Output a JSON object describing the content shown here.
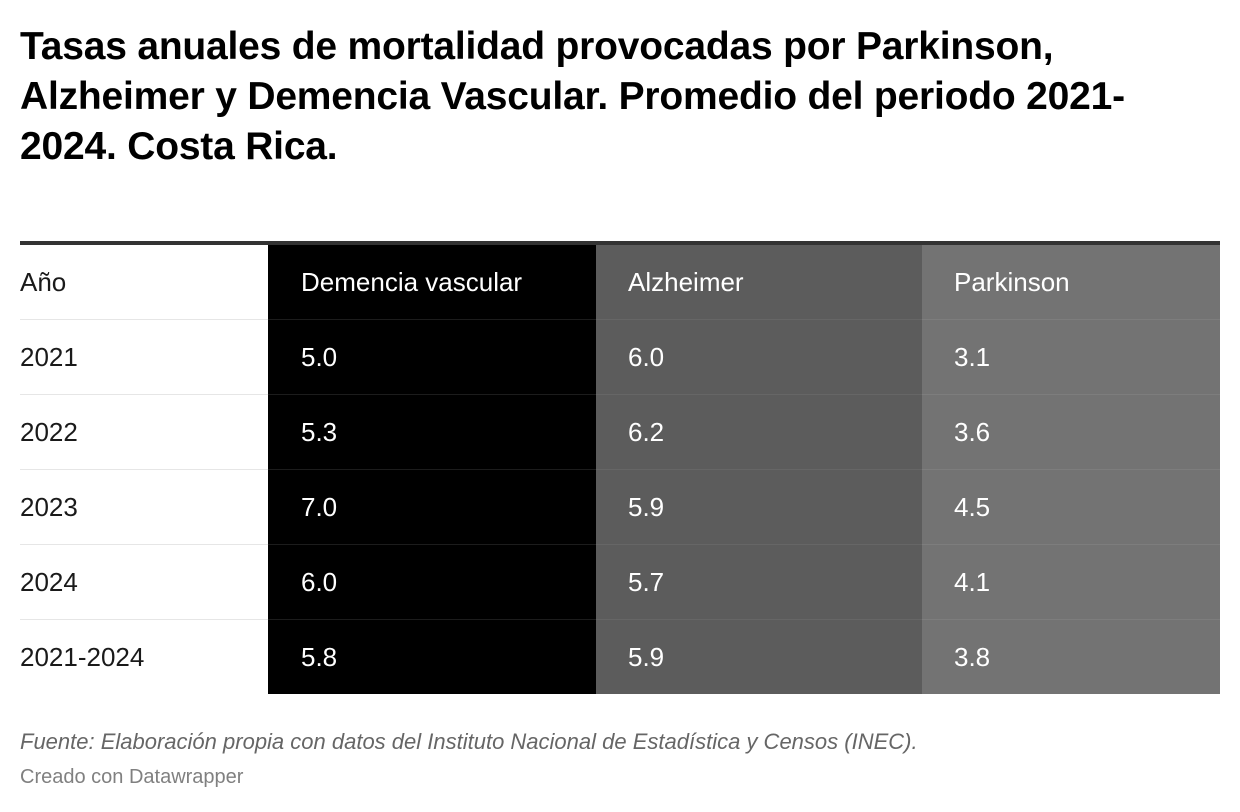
{
  "title": "Tasas anuales de mortalidad provocadas por Parkinson, Alzheimer y Demencia Vascular. Promedio del periodo 2021-2024. Costa Rica.",
  "source": "Fuente: Elaboración propia con datos del Instituto Nacional de Estadística y Censos (INEC).",
  "credit": "Creado con Datawrapper",
  "colors": {
    "demencia_vascular": "#000000",
    "alzheimer": "#5c5c5c",
    "parkinson": "#737373"
  },
  "chart_data": {
    "type": "table",
    "title": "Tasas anuales de mortalidad provocadas por Parkinson, Alzheimer y Demencia Vascular. Promedio del periodo 2021-2024. Costa Rica.",
    "columns": [
      "Año",
      "Demencia vascular",
      "Alzheimer",
      "Parkinson"
    ],
    "rows": [
      [
        "2021",
        "5.0",
        "6.0",
        "3.1"
      ],
      [
        "2022",
        "5.3",
        "6.2",
        "3.6"
      ],
      [
        "2023",
        "7.0",
        "5.9",
        "4.5"
      ],
      [
        "2024",
        "6.0",
        "5.7",
        "4.1"
      ],
      [
        "2021-2024",
        "5.8",
        "5.9",
        "3.8"
      ]
    ]
  }
}
